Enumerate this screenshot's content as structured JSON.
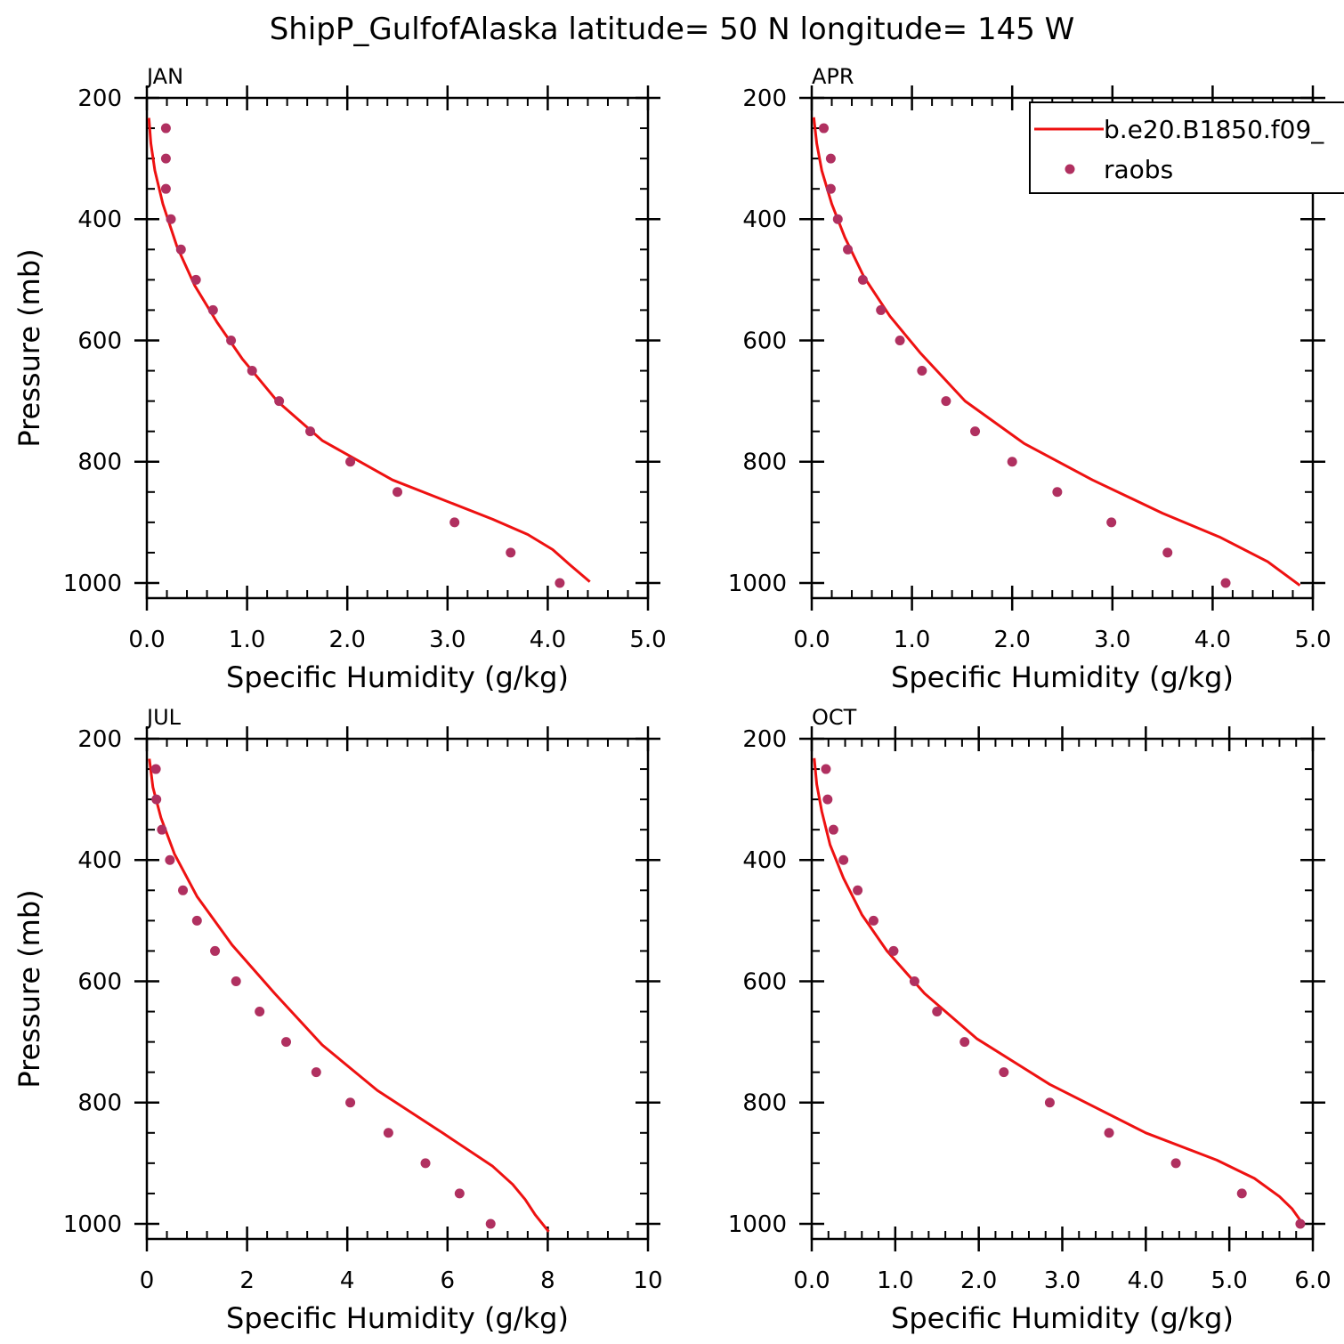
{
  "title": "ShipP_GulfofAlaska  latitude= 50 N longitude= 145 W",
  "colors": {
    "model": "#ee1111",
    "obs": "#b03060",
    "axis": "#000000"
  },
  "legend": {
    "model_label": "b.e20.B1850.f09_",
    "obs_label": "raobs"
  },
  "chart_data": [
    {
      "type": "line",
      "panel": "JAN",
      "xlabel": "Specific Humidity (g/kg)",
      "ylabel": "Pressure (mb)",
      "xlim": [
        0,
        5
      ],
      "ylim": [
        200,
        1025
      ],
      "x_tick_labels": [
        "0.0",
        "1.0",
        "2.0",
        "3.0",
        "4.0",
        "5.0"
      ],
      "y_ticks": [
        200,
        400,
        600,
        800,
        1000
      ],
      "series": [
        {
          "name": "b.e20.B1850.f09_",
          "kind": "line",
          "x": [
            0.02,
            0.04,
            0.08,
            0.16,
            0.3,
            0.48,
            0.7,
            0.95,
            1.3,
            1.75,
            2.45,
            3.45,
            3.8,
            4.05,
            4.22,
            4.42
          ],
          "y": [
            233,
            275,
            320,
            375,
            445,
            510,
            570,
            630,
            700,
            765,
            830,
            895,
            920,
            945,
            970,
            998
          ]
        },
        {
          "name": "raobs",
          "kind": "scatter",
          "x": [
            0.19,
            0.19,
            0.19,
            0.24,
            0.34,
            0.49,
            0.66,
            0.84,
            1.05,
            1.32,
            1.63,
            2.03,
            2.5,
            3.07,
            3.63,
            4.12
          ],
          "y": [
            250,
            300,
            350,
            400,
            450,
            500,
            550,
            600,
            650,
            700,
            750,
            800,
            850,
            900,
            950,
            1000
          ]
        }
      ]
    },
    {
      "type": "line",
      "panel": "APR",
      "xlabel": "Specific Humidity (g/kg)",
      "ylabel": "",
      "xlim": [
        0,
        5
      ],
      "ylim": [
        200,
        1025
      ],
      "x_tick_labels": [
        "0.0",
        "1.0",
        "2.0",
        "3.0",
        "4.0",
        "5.0"
      ],
      "y_ticks": [
        200,
        400,
        600,
        800,
        1000
      ],
      "show_legend": true,
      "series": [
        {
          "name": "b.e20.B1850.f09_",
          "kind": "line",
          "x": [
            0.02,
            0.05,
            0.1,
            0.2,
            0.33,
            0.52,
            0.78,
            1.08,
            1.53,
            2.12,
            2.8,
            3.5,
            4.08,
            4.55,
            4.87
          ],
          "y": [
            232,
            275,
            320,
            375,
            430,
            495,
            560,
            620,
            700,
            770,
            830,
            885,
            925,
            965,
            1004
          ]
        },
        {
          "name": "raobs",
          "kind": "scatter",
          "x": [
            0.12,
            0.19,
            0.19,
            0.26,
            0.36,
            0.51,
            0.69,
            0.88,
            1.1,
            1.34,
            1.63,
            2.0,
            2.45,
            2.99,
            3.55,
            4.13
          ],
          "y": [
            250,
            300,
            350,
            400,
            450,
            500,
            550,
            600,
            650,
            700,
            750,
            800,
            850,
            900,
            950,
            1000
          ]
        }
      ]
    },
    {
      "type": "line",
      "panel": "JUL",
      "xlabel": "Specific Humidity (g/kg)",
      "ylabel": "Pressure (mb)",
      "xlim": [
        0,
        10
      ],
      "ylim": [
        200,
        1025
      ],
      "x_tick_labels": [
        "0",
        "2",
        "4",
        "6",
        "8",
        "10"
      ],
      "y_ticks": [
        200,
        400,
        600,
        800,
        1000
      ],
      "series": [
        {
          "name": "b.e20.B1850.f09_",
          "kind": "line",
          "x": [
            0.05,
            0.12,
            0.28,
            0.55,
            1.0,
            1.7,
            2.55,
            3.5,
            4.6,
            5.9,
            6.9,
            7.3,
            7.55,
            7.75,
            8.02
          ],
          "y": [
            233,
            280,
            330,
            390,
            460,
            540,
            620,
            705,
            780,
            850,
            905,
            935,
            960,
            985,
            1013
          ]
        },
        {
          "name": "raobs",
          "kind": "scatter",
          "x": [
            0.18,
            0.19,
            0.3,
            0.46,
            0.72,
            1.0,
            1.36,
            1.78,
            2.25,
            2.78,
            3.38,
            4.06,
            4.82,
            5.56,
            6.24,
            6.86
          ],
          "y": [
            250,
            300,
            350,
            400,
            450,
            500,
            550,
            600,
            650,
            700,
            750,
            800,
            850,
            900,
            950,
            1000
          ]
        }
      ]
    },
    {
      "type": "line",
      "panel": "OCT",
      "xlabel": "Specific Humidity (g/kg)",
      "ylabel": "",
      "xlim": [
        0,
        6
      ],
      "ylim": [
        200,
        1025
      ],
      "x_tick_labels": [
        "0.0",
        "1.0",
        "2.0",
        "3.0",
        "4.0",
        "5.0",
        "6.0"
      ],
      "y_ticks": [
        200,
        400,
        600,
        800,
        1000
      ],
      "series": [
        {
          "name": "b.e20.B1850.f09_",
          "kind": "line",
          "x": [
            0.03,
            0.06,
            0.12,
            0.22,
            0.38,
            0.6,
            0.9,
            1.35,
            1.98,
            2.85,
            4.0,
            4.85,
            5.3,
            5.6,
            5.75,
            5.88
          ],
          "y": [
            232,
            275,
            320,
            375,
            430,
            490,
            550,
            620,
            695,
            770,
            850,
            895,
            925,
            955,
            975,
            1000
          ]
        },
        {
          "name": "raobs",
          "kind": "scatter",
          "x": [
            0.17,
            0.19,
            0.26,
            0.38,
            0.55,
            0.74,
            0.98,
            1.23,
            1.5,
            1.83,
            2.3,
            2.85,
            3.56,
            4.36,
            5.15,
            5.85
          ],
          "y": [
            250,
            300,
            350,
            400,
            450,
            500,
            550,
            600,
            650,
            700,
            750,
            800,
            850,
            900,
            950,
            1000
          ]
        }
      ]
    }
  ]
}
